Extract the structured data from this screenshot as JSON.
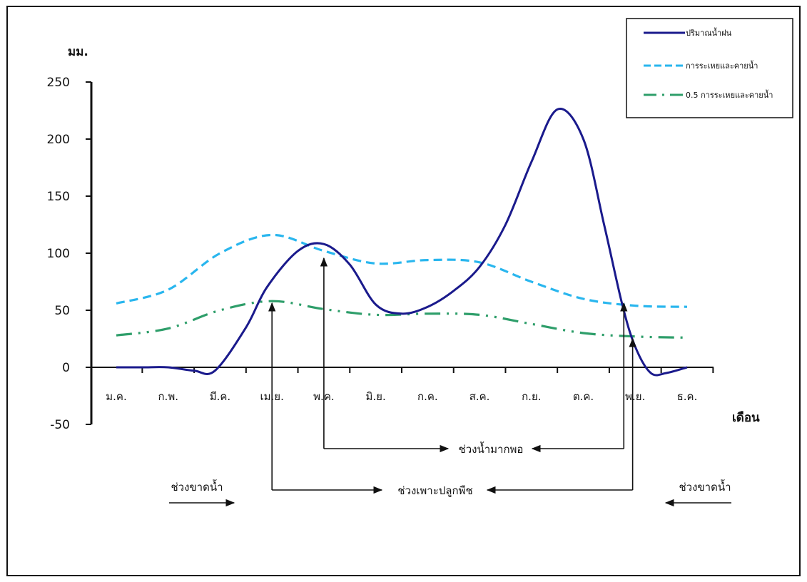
{
  "chart_data": {
    "type": "line",
    "title": "",
    "ylabel": "มม.",
    "xlabel": "เดือน",
    "ylim": [
      -50,
      250
    ],
    "yticks": [
      250,
      200,
      150,
      100,
      50,
      0,
      -50
    ],
    "categories": [
      "ม.ค.",
      "ก.พ.",
      "มี.ค.",
      "เม.ย.",
      "พ.ค.",
      "มิ.ย.",
      "ก.ค.",
      "ส.ค.",
      "ก.ย.",
      "ต.ค.",
      "พ.ย.",
      "ธ.ค."
    ],
    "grid": false,
    "legend_position": "top-right",
    "series": [
      {
        "name": "ปริมาณน้ำฝน",
        "style": "solid",
        "color": "#1a1a8c",
        "points": [
          [
            1,
            0
          ],
          [
            1.5,
            0
          ],
          [
            2,
            0
          ],
          [
            2.5,
            -3
          ],
          [
            2.9,
            -3
          ],
          [
            3.5,
            35
          ],
          [
            3.9,
            70
          ],
          [
            4.5,
            102
          ],
          [
            5.0,
            108
          ],
          [
            5.5,
            90
          ],
          [
            6.0,
            55
          ],
          [
            6.5,
            47
          ],
          [
            7.0,
            53
          ],
          [
            7.5,
            67
          ],
          [
            8.0,
            88
          ],
          [
            8.5,
            125
          ],
          [
            9.0,
            180
          ],
          [
            9.5,
            226
          ],
          [
            10.0,
            200
          ],
          [
            10.4,
            125
          ],
          [
            10.75,
            55
          ],
          [
            11.0,
            18
          ],
          [
            11.3,
            -5
          ],
          [
            11.6,
            -5
          ],
          [
            12.0,
            0
          ]
        ]
      },
      {
        "name": "การระเหยและคายน้ำ",
        "style": "dashed",
        "color": "#29b6ee",
        "points": [
          [
            1,
            56
          ],
          [
            2,
            68
          ],
          [
            3,
            100
          ],
          [
            4,
            116
          ],
          [
            5,
            102
          ],
          [
            6,
            91
          ],
          [
            7,
            94
          ],
          [
            8,
            92
          ],
          [
            9,
            75
          ],
          [
            10,
            60
          ],
          [
            11,
            54
          ],
          [
            12,
            53
          ]
        ]
      },
      {
        "name": "0.5 การระเหยและคายน้ำ",
        "style": "dash-dot",
        "color": "#2e9e6a",
        "points": [
          [
            1,
            28
          ],
          [
            2,
            34
          ],
          [
            3,
            50
          ],
          [
            4,
            58
          ],
          [
            5,
            51
          ],
          [
            6,
            46
          ],
          [
            7,
            47
          ],
          [
            8,
            46
          ],
          [
            9,
            38
          ],
          [
            10,
            30
          ],
          [
            11,
            27
          ],
          [
            12,
            26
          ]
        ]
      }
    ],
    "annotations": [
      {
        "text": "ช่วงน้ำมากพอ",
        "from_month": 5.0,
        "to_month": 10.78
      },
      {
        "text": "ช่วงเพาะปลูกพืช",
        "from_month": 4.0,
        "to_month": 10.95
      },
      {
        "text": "ช่วงขาดน้ำ",
        "side": "left"
      },
      {
        "text": "ช่วงขาดน้ำ",
        "side": "right"
      }
    ]
  }
}
